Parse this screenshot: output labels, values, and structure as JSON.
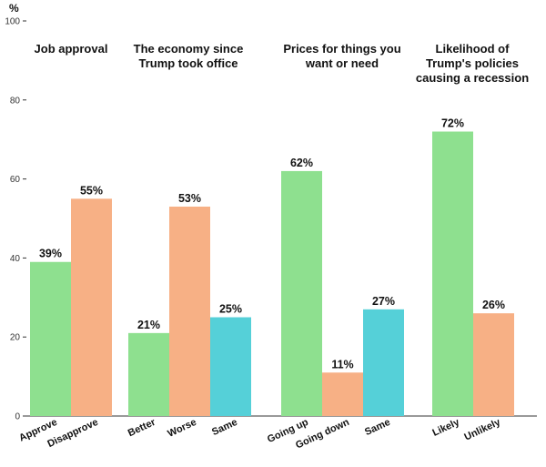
{
  "chart_data": {
    "type": "bar",
    "unit_label": "%",
    "ylim": [
      0,
      100
    ],
    "yticks": [
      0,
      20,
      40,
      60,
      80,
      100
    ],
    "groups": [
      {
        "title": [
          "Job approval"
        ],
        "bars": [
          {
            "category": "Approve",
            "value": 39,
            "label": "39%",
            "color": "#8ee08f"
          },
          {
            "category": "Disapprove",
            "value": 55,
            "label": "55%",
            "color": "#f7b085"
          }
        ]
      },
      {
        "title": [
          "The economy since",
          "Trump took office"
        ],
        "bars": [
          {
            "category": "Better",
            "value": 21,
            "label": "21%",
            "color": "#8ee08f"
          },
          {
            "category": "Worse",
            "value": 53,
            "label": "53%",
            "color": "#f7b085"
          },
          {
            "category": "Same",
            "value": 25,
            "label": "25%",
            "color": "#55d0d8"
          }
        ]
      },
      {
        "title": [
          "Prices for things you",
          "want or need"
        ],
        "bars": [
          {
            "category": "Going up",
            "value": 62,
            "label": "62%",
            "color": "#8ee08f"
          },
          {
            "category": "Going down",
            "value": 11,
            "label": "11%",
            "color": "#f7b085"
          },
          {
            "category": "Same",
            "value": 27,
            "label": "27%",
            "color": "#55d0d8"
          }
        ]
      },
      {
        "title": [
          "Likelihood of",
          "Trump's policies",
          "causing a recession"
        ],
        "bars": [
          {
            "category": "Likely",
            "value": 72,
            "label": "72%",
            "color": "#8ee08f"
          },
          {
            "category": "Unlikely",
            "value": 26,
            "label": "26%",
            "color": "#f7b085"
          }
        ]
      }
    ],
    "colors": {
      "axis": "#333333"
    }
  }
}
